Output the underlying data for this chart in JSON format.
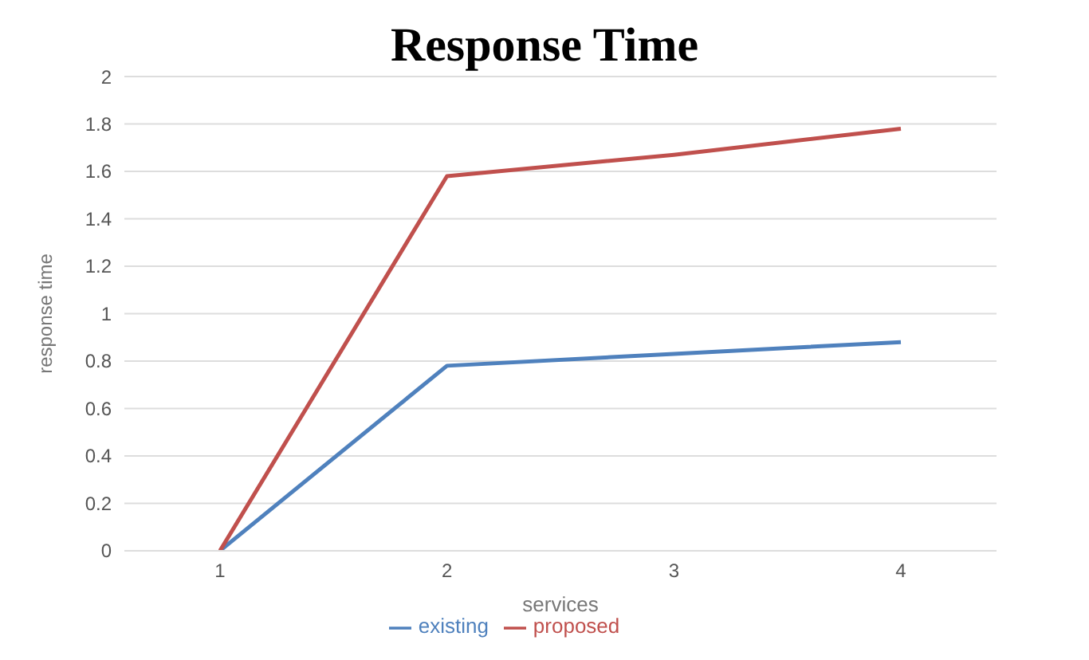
{
  "chart_data": {
    "type": "line",
    "title": "Response Time",
    "xlabel": "services",
    "ylabel": "response time",
    "categories": [
      "1",
      "2",
      "3",
      "4"
    ],
    "series": [
      {
        "name": "existing",
        "color": "#4f81bd",
        "values": [
          0,
          0.78,
          0.83,
          0.88
        ]
      },
      {
        "name": "proposed",
        "color": "#c0504d",
        "values": [
          0,
          1.58,
          1.67,
          1.78
        ]
      }
    ],
    "ylim": [
      0,
      2
    ],
    "yticks": [
      0,
      0.2,
      0.4,
      0.6,
      0.8,
      1,
      1.2,
      1.4,
      1.6,
      1.8,
      2
    ],
    "grid": "y",
    "legend": "bottom",
    "marker": "none"
  }
}
